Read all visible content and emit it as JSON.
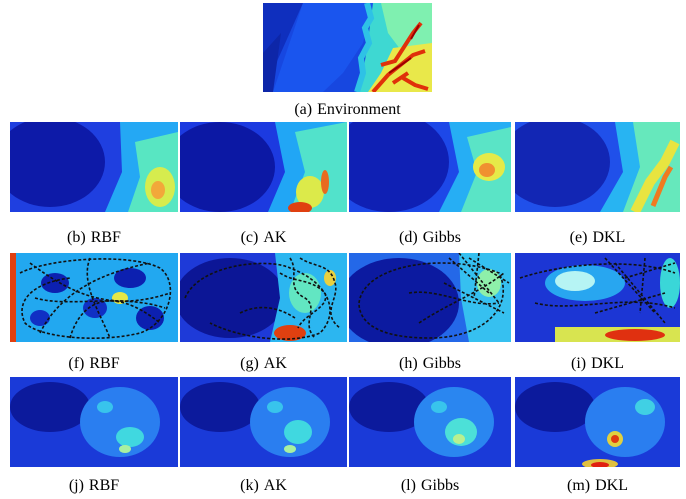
{
  "figure": {
    "environment": {
      "letter": "(a)",
      "label": "Environment"
    },
    "rows": [
      {
        "kind": "mean",
        "panels": [
          {
            "letter": "(b)",
            "label": "RBF"
          },
          {
            "letter": "(c)",
            "label": "AK"
          },
          {
            "letter": "(d)",
            "label": "Gibbs"
          },
          {
            "letter": "(e)",
            "label": "DKL"
          }
        ]
      },
      {
        "kind": "std_with_path",
        "panels": [
          {
            "letter": "(f)",
            "label": "RBF"
          },
          {
            "letter": "(g)",
            "label": "AK"
          },
          {
            "letter": "(h)",
            "label": "Gibbs"
          },
          {
            "letter": "(i)",
            "label": "DKL"
          }
        ]
      },
      {
        "kind": "error",
        "panels": [
          {
            "letter": "(j)",
            "label": "RBF"
          },
          {
            "letter": "(k)",
            "label": "AK"
          },
          {
            "letter": "(l)",
            "label": "Gibbs"
          },
          {
            "letter": "(m)",
            "label": "DKL"
          }
        ]
      }
    ],
    "colors": {
      "low": "#00008f",
      "mid": "#00b0ff",
      "cyan": "#3fe6d6",
      "yellow": "#f6f23a",
      "high": "#d00000",
      "path": "#111111"
    }
  }
}
